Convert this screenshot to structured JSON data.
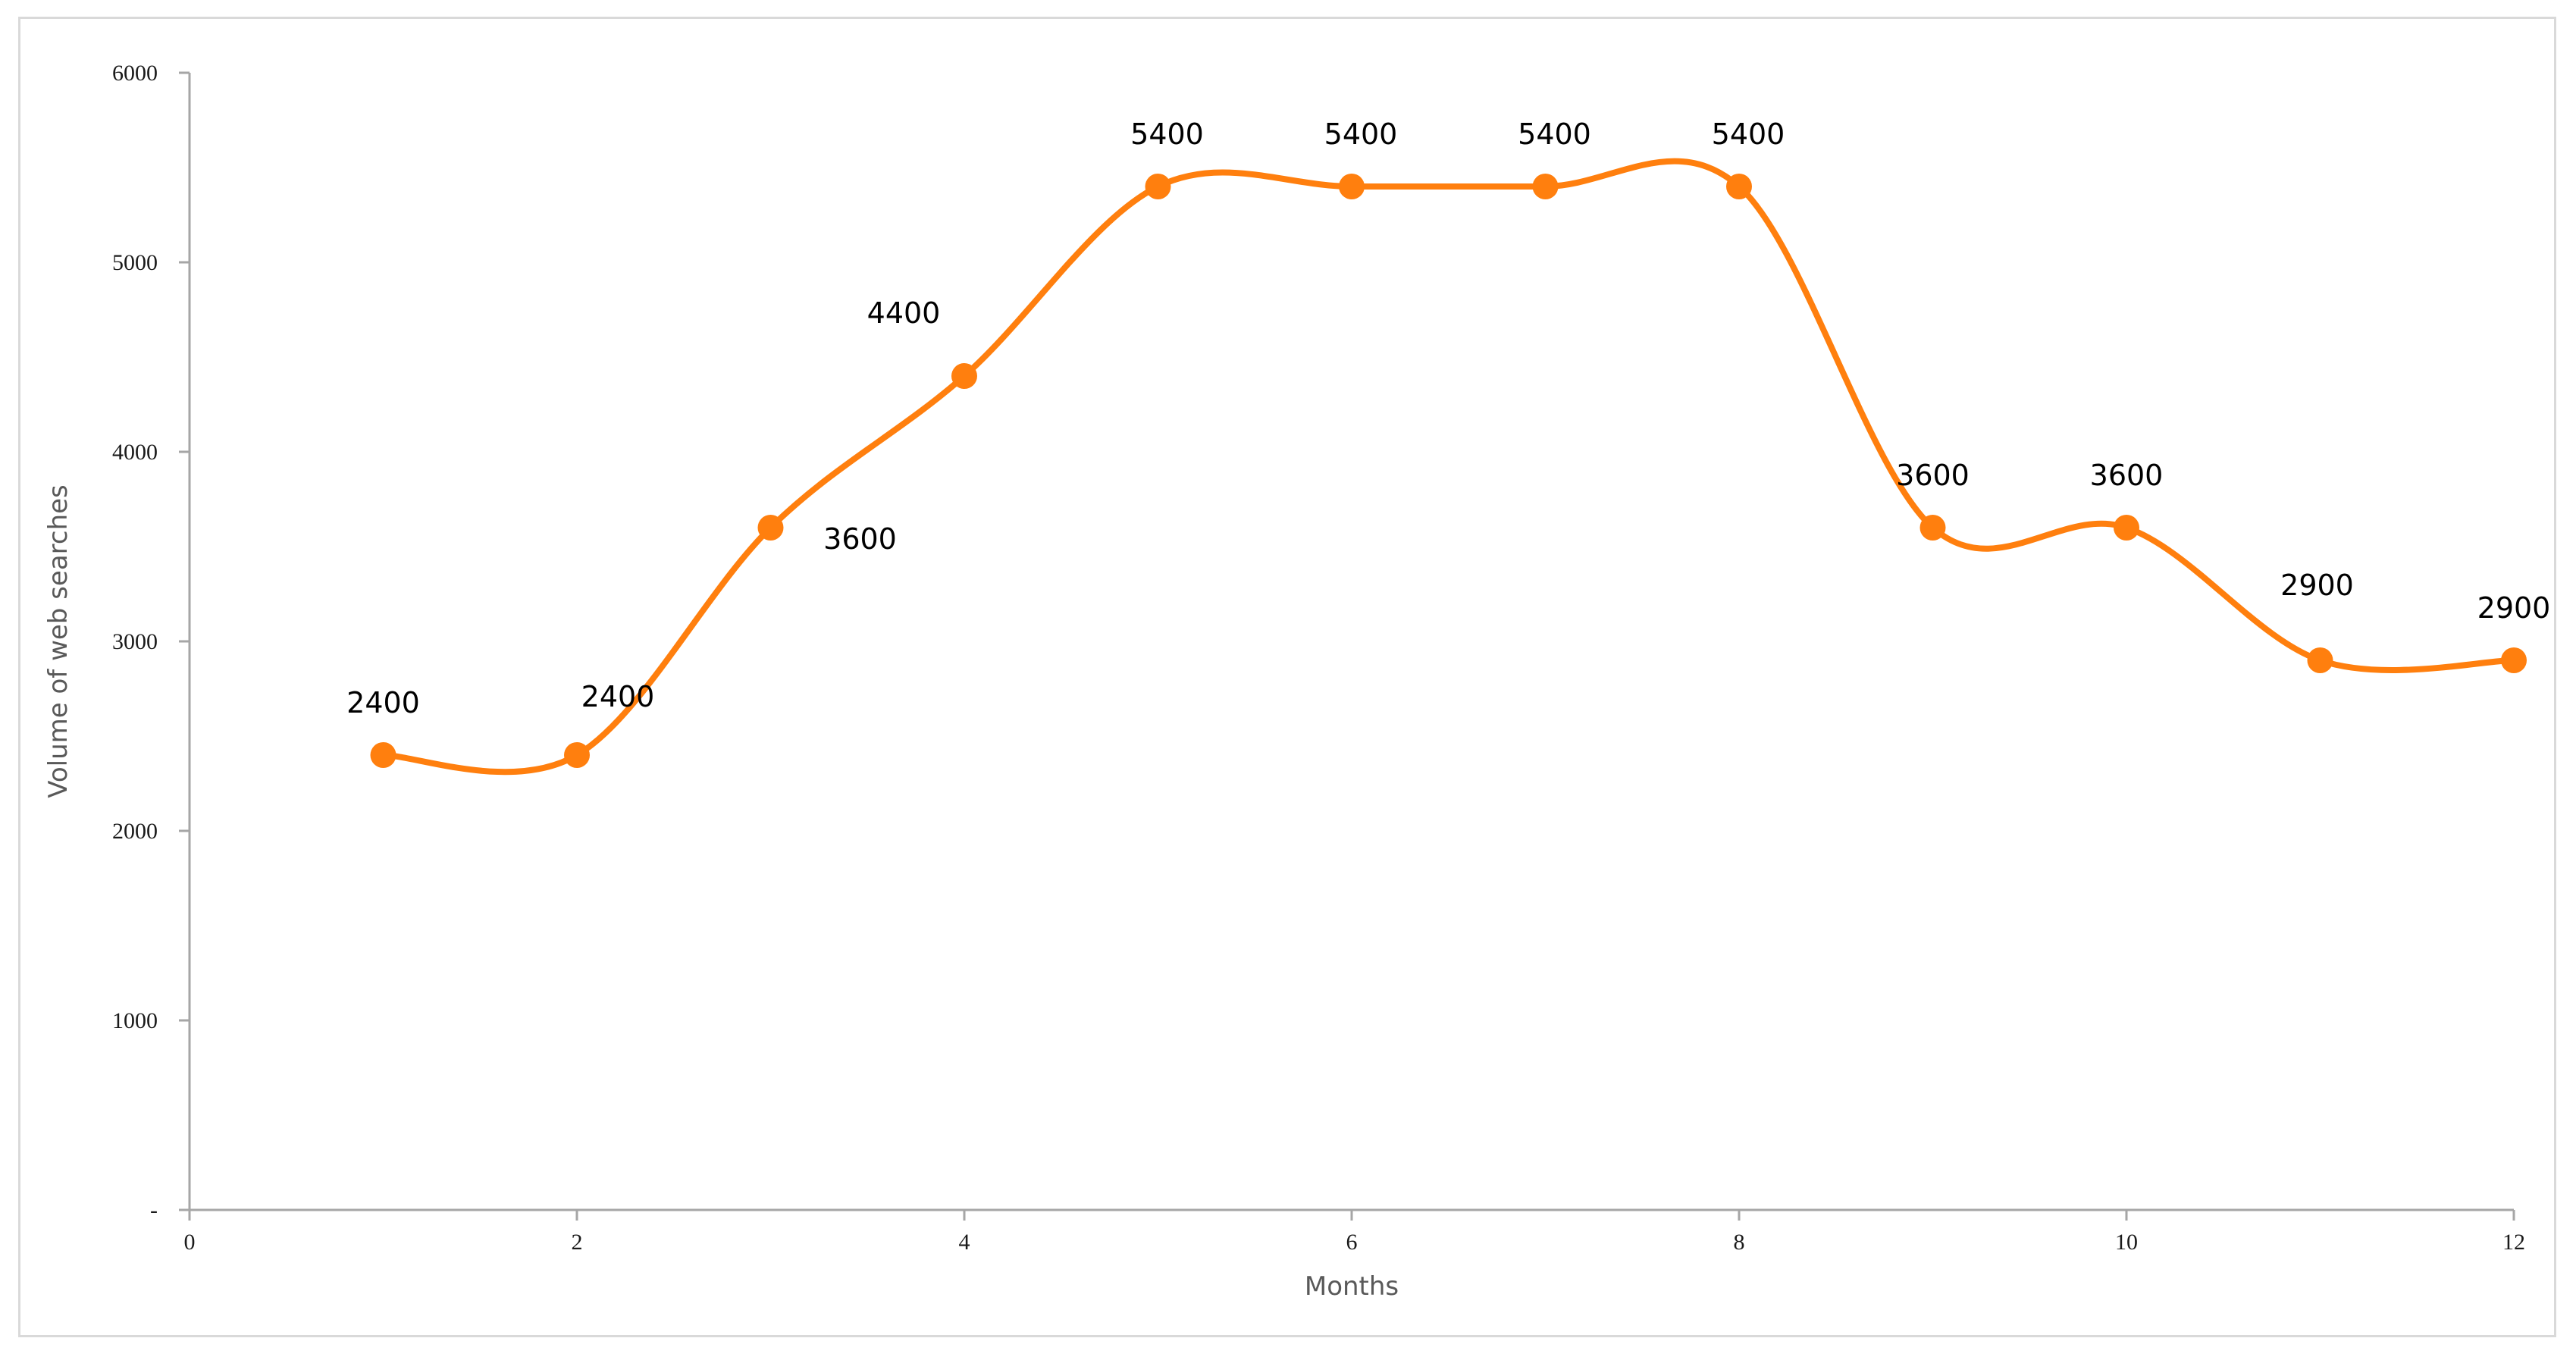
{
  "chart_data": {
    "type": "line",
    "title": "",
    "xlabel": "Months",
    "ylabel": "Volume of web searches",
    "xlim": [
      0,
      12
    ],
    "ylim": [
      0,
      6000
    ],
    "x_ticks": [
      0,
      2,
      4,
      6,
      8,
      10,
      12
    ],
    "x_tick_labels": [
      "0",
      "2",
      "4",
      "6",
      "8",
      "10",
      "12"
    ],
    "y_ticks": [
      0,
      1000,
      2000,
      3000,
      4000,
      5000,
      6000
    ],
    "y_tick_labels": [
      "-",
      "1000",
      "2000",
      "3000",
      "4000",
      "5000",
      "6000"
    ],
    "grid": false,
    "smooth": true,
    "series": [
      {
        "color": "#ff7f0e",
        "x": [
          1,
          2,
          3,
          4,
          5,
          6,
          7,
          8,
          9,
          10,
          11,
          12
        ],
        "y": [
          2400,
          2400,
          3600,
          4400,
          5400,
          5400,
          5400,
          5400,
          3600,
          3600,
          2900,
          2900
        ],
        "data_labels": [
          "2400",
          "2400",
          "3600",
          "4400",
          "5400",
          "5400",
          "5400",
          "5400",
          "3600",
          "3600",
          "2900",
          "2900"
        ]
      }
    ]
  }
}
